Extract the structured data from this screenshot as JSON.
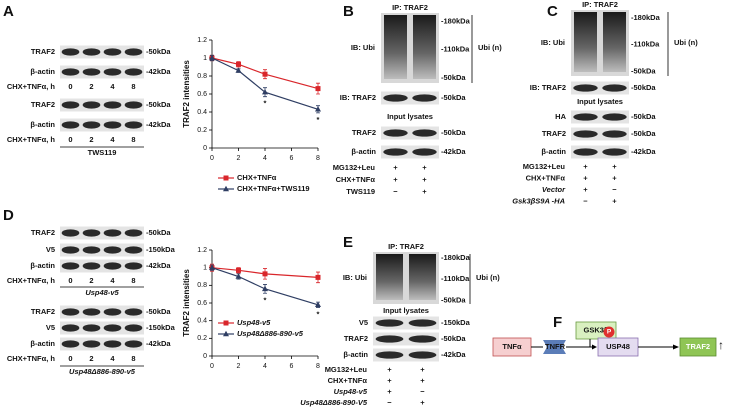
{
  "panels": {
    "A": {
      "label": "A",
      "set1": {
        "rows": [
          {
            "name": "TRAF2",
            "marker": "-50kDa"
          },
          {
            "name": "β-actin",
            "marker": "-42kDa"
          }
        ],
        "treatment": "CHX+TNFα, h",
        "times": [
          "0",
          "2",
          "4",
          "8"
        ]
      },
      "set2": {
        "rows": [
          {
            "name": "TRAF2",
            "marker": "-50kDa"
          },
          {
            "name": "β-actin",
            "marker": "-42kDa"
          }
        ],
        "treatment": "CHX+TNFα, h",
        "times": [
          "0",
          "2",
          "4",
          "8"
        ],
        "group": "TWS119"
      }
    },
    "B": {
      "label": "B",
      "ip": "IP: TRAF2",
      "ib": "IB: Ubi",
      "ubi_markers": [
        "-180kDa",
        "-110kDa",
        "-50kDa"
      ],
      "ubi_label": "Ubi (n)",
      "ib_traf2": {
        "name": "IB: TRAF2",
        "marker": "-50kDa"
      },
      "input": "Input lysates",
      "rows": [
        {
          "name": "TRAF2",
          "marker": "-50kDa"
        },
        {
          "name": "β-actin",
          "marker": "-42kDa"
        }
      ],
      "conditions": [
        {
          "name": "MG132+Leu",
          "signs": [
            "+",
            "+"
          ]
        },
        {
          "name": "CHX+TNFα",
          "signs": [
            "+",
            "+"
          ]
        },
        {
          "name": "TWS119",
          "signs": [
            "−",
            "+"
          ]
        }
      ]
    },
    "C": {
      "label": "C",
      "ip": "IP: TRAF2",
      "ib": "IB: Ubi",
      "ubi_markers": [
        "-180kDa",
        "-110kDa",
        "-50kDa"
      ],
      "ubi_label": "Ubi (n)",
      "ib_traf2": {
        "name": "IB: TRAF2",
        "marker": "-50kDa"
      },
      "input": "Input lysates",
      "rows": [
        {
          "name": "HA",
          "marker": "-50kDa"
        },
        {
          "name": "TRAF2",
          "marker": "-50kDa"
        },
        {
          "name": "β-actin",
          "marker": "-42kDa"
        }
      ],
      "conditions": [
        {
          "name": "MG132+Leu",
          "signs": [
            "+",
            "+"
          ]
        },
        {
          "name": "CHX+TNFα",
          "signs": [
            "+",
            "+"
          ]
        },
        {
          "name": "Vector",
          "signs": [
            "+",
            "−"
          ]
        },
        {
          "name": "Gsk3βS9A -HA",
          "signs": [
            "−",
            "+"
          ]
        }
      ]
    },
    "D": {
      "label": "D",
      "set1": {
        "rows": [
          {
            "name": "TRAF2",
            "marker": "-50kDa"
          },
          {
            "name": "V5",
            "marker": "-150kDa"
          },
          {
            "name": "β-actin",
            "marker": "-42kDa"
          }
        ],
        "treatment": "CHX+TNFα, h",
        "times": [
          "0",
          "2",
          "4",
          "8"
        ],
        "group": "Usp48-v5"
      },
      "set2": {
        "rows": [
          {
            "name": "TRAF2",
            "marker": "-50kDa"
          },
          {
            "name": "V5",
            "marker": "-150kDa"
          },
          {
            "name": "β-actin",
            "marker": "-42kDa"
          }
        ],
        "treatment": "CHX+TNFα, h",
        "times": [
          "0",
          "2",
          "4",
          "8"
        ],
        "group": "Usp48Δ886-890-v5"
      }
    },
    "E": {
      "label": "E",
      "ip": "IP: TRAF2",
      "ib": "IB: Ubi",
      "ubi_markers": [
        "-180kDa",
        "-110kDa",
        "-50kDa"
      ],
      "ubi_label": "Ubi (n)",
      "input": "Input lysates",
      "rows": [
        {
          "name": "V5",
          "marker": "-150kDa"
        },
        {
          "name": "TRAF2",
          "marker": "-50kDa"
        },
        {
          "name": "β-actin",
          "marker": "-42kDa"
        }
      ],
      "conditions": [
        {
          "name": "MG132+Leu",
          "signs": [
            "+",
            "+"
          ]
        },
        {
          "name": "CHX+TNFα",
          "signs": [
            "+",
            "+"
          ]
        },
        {
          "name": "Usp48-v5",
          "signs": [
            "+",
            "−"
          ]
        },
        {
          "name": "Usp48Δ886-890-V5",
          "signs": [
            "−",
            "+"
          ]
        }
      ]
    },
    "F": {
      "label": "F",
      "nodes": [
        "TNFα",
        "TNFR",
        "GSK3β",
        "USP48",
        "TRAF2"
      ],
      "phospho": "P",
      "arrow": "↑"
    }
  },
  "chart_data": [
    {
      "type": "line",
      "y_label": "TRAF2 intensities",
      "x": [
        0,
        2,
        4,
        8
      ],
      "xlim": [
        0,
        8
      ],
      "xticks": [
        0,
        2,
        4,
        6,
        8
      ],
      "ylim": [
        0,
        1.2
      ],
      "yticks": [
        0,
        0.2,
        0.4,
        0.6,
        0.8,
        1,
        1.2
      ],
      "legend": "below",
      "series": [
        {
          "name": "CHX+TNFα",
          "color": "#d9262b",
          "marker": "square",
          "values": [
            1,
            0.93,
            0.82,
            0.66
          ],
          "errors": [
            0.03,
            0.03,
            0.05,
            0.06
          ]
        },
        {
          "name": "CHX+TNFα+TWS119",
          "color": "#2f3e63",
          "marker": "triangle",
          "values": [
            1,
            0.86,
            0.62,
            0.43
          ],
          "errors": [
            0.03,
            0.02,
            0.05,
            0.04
          ]
        }
      ],
      "annotations": [
        {
          "x": 4,
          "text": "*"
        },
        {
          "x": 8,
          "text": "*"
        }
      ]
    },
    {
      "type": "line",
      "y_label": "TRAF2 intensities",
      "x": [
        0,
        2,
        4,
        8
      ],
      "xlim": [
        0,
        8
      ],
      "xticks": [
        0,
        2,
        4,
        6,
        8
      ],
      "ylim": [
        0,
        1.2
      ],
      "yticks": [
        0,
        0.2,
        0.4,
        0.6,
        0.8,
        1,
        1.2
      ],
      "legend": "lower left",
      "series": [
        {
          "name": "Usp48-v5",
          "color": "#d9262b",
          "marker": "square",
          "values": [
            1,
            0.97,
            0.93,
            0.89
          ],
          "errors": [
            0.04,
            0.03,
            0.06,
            0.06
          ]
        },
        {
          "name": "Usp48Δ886-890-v5",
          "color": "#2f3e63",
          "marker": "triangle",
          "values": [
            1,
            0.9,
            0.76,
            0.58
          ],
          "errors": [
            0.03,
            0.03,
            0.05,
            0.03
          ]
        }
      ],
      "annotations": [
        {
          "x": 4,
          "text": "*"
        },
        {
          "x": 8,
          "text": "*"
        }
      ]
    }
  ]
}
